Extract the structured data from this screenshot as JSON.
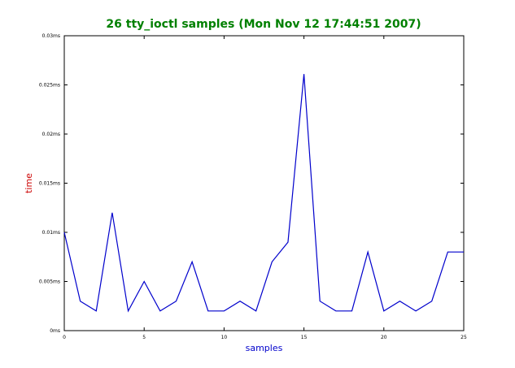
{
  "chart_data": {
    "type": "line",
    "title": "26 tty_ioctl samples (Mon Nov 12 17:44:51 2007)",
    "xlabel": "samples",
    "ylabel": "time",
    "xlim": [
      0,
      25
    ],
    "ylim": [
      0,
      0.03
    ],
    "x_ticks": [
      0,
      5,
      10,
      15,
      20,
      25
    ],
    "x_tick_labels": [
      "0",
      "5",
      "10",
      "15",
      "20",
      "25"
    ],
    "y_ticks": [
      0,
      0.005,
      0.01,
      0.015,
      0.02,
      0.025,
      0.03
    ],
    "y_tick_labels": [
      "0ms",
      "0.005ms",
      "0.01ms",
      "0.015ms",
      "0.02ms",
      "0.025ms",
      "0.03ms"
    ],
    "grid": false,
    "legend": "none",
    "series": [
      {
        "x": [
          0,
          1,
          2,
          3,
          4,
          5,
          6,
          7,
          8,
          9,
          10,
          11,
          12,
          13,
          14,
          15,
          16,
          17,
          18,
          19,
          20,
          21,
          22,
          23,
          24,
          25
        ],
        "values": [
          0.01,
          0.003,
          0.002,
          0.012,
          0.002,
          0.005,
          0.002,
          0.003,
          0.007,
          0.002,
          0.002,
          0.003,
          0.002,
          0.007,
          0.009,
          0.0261,
          0.003,
          0.002,
          0.002,
          0.008,
          0.002,
          0.003,
          0.002,
          0.003,
          0.008,
          0.008
        ],
        "color": "#0000cc"
      }
    ],
    "colors": {
      "title": "#008000",
      "xlabel": "#0000cc",
      "ylabel": "#cc0000",
      "line": "#0000cc",
      "frame": "#000000"
    }
  }
}
